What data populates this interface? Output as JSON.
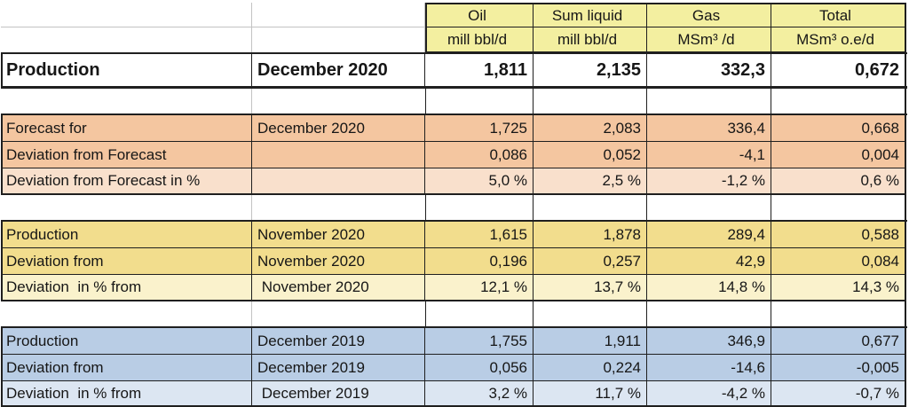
{
  "table": {
    "columns": [
      {
        "label": "Oil",
        "unit": "mill bbl/d"
      },
      {
        "label": "Sum liquid",
        "unit": "mill bbl/d"
      },
      {
        "label": "Gas",
        "unit": "MSm³ /d"
      },
      {
        "label": "Total",
        "unit": "MSm³ o.e/d"
      }
    ],
    "colors": {
      "header_fill": "#F3EFA0",
      "forecast_dark": "#F4C6A0",
      "forecast_light": "#F9E0CC",
      "prev_month_dark": "#F2DD8D",
      "prev_month_light": "#FAF2CC",
      "prev_year_dark": "#B9CDE5",
      "prev_year_light": "#DCE6F2",
      "grid_dark": "#1F1F1F",
      "grid_light": "#C3C3C3"
    },
    "rows": [
      {
        "kind": "production_total",
        "label": "Production",
        "month": "December 2020",
        "values": [
          "1,811",
          "2,135",
          "332,3",
          "0,672"
        ]
      },
      {
        "kind": "spacer"
      },
      {
        "kind": "data",
        "palette": "forecast",
        "shade": "dark",
        "pos": "first",
        "label": "Forecast for",
        "month": "December 2020",
        "values": [
          "1,725",
          "2,083",
          "336,4",
          "0,668"
        ]
      },
      {
        "kind": "data",
        "palette": "forecast",
        "shade": "dark",
        "label": "Deviation from Forecast",
        "month": "",
        "values": [
          "0,086",
          "0,052",
          "-4,1",
          "0,004"
        ]
      },
      {
        "kind": "data",
        "palette": "forecast",
        "shade": "light",
        "pos": "last",
        "label": "Deviation from Forecast in %",
        "month": "",
        "values": [
          "5,0 %",
          "2,5 %",
          "-1,2 %",
          "0,6 %"
        ]
      },
      {
        "kind": "spacer"
      },
      {
        "kind": "data",
        "palette": "prev_month",
        "shade": "dark",
        "pos": "first",
        "label": "Production",
        "month": "November 2020",
        "values": [
          "1,615",
          "1,878",
          "289,4",
          "0,588"
        ]
      },
      {
        "kind": "data",
        "palette": "prev_month",
        "shade": "dark",
        "label": "Deviation from",
        "month": "November 2020",
        "values": [
          "0,196",
          "0,257",
          "42,9",
          "0,084"
        ]
      },
      {
        "kind": "data",
        "palette": "prev_month",
        "shade": "light",
        "pos": "last",
        "label": "Deviation  in % from",
        "month": " November 2020",
        "values": [
          "12,1 %",
          "13,7 %",
          "14,8 %",
          "14,3 %"
        ]
      },
      {
        "kind": "spacer"
      },
      {
        "kind": "data",
        "palette": "prev_year",
        "shade": "dark",
        "pos": "first",
        "label": "Production",
        "month": "December 2019",
        "values": [
          "1,755",
          "1,911",
          "346,9",
          "0,677"
        ]
      },
      {
        "kind": "data",
        "palette": "prev_year",
        "shade": "dark",
        "label": "Deviation from",
        "month": "December 2019",
        "values": [
          "0,056",
          "0,224",
          "-14,6",
          "-0,005"
        ]
      },
      {
        "kind": "data",
        "palette": "prev_year",
        "shade": "light",
        "pos": "last",
        "label": "Deviation  in % from",
        "month": " December 2019",
        "values": [
          "3,2 %",
          "11,7 %",
          "-4,2 %",
          "-0,7 %"
        ]
      }
    ]
  }
}
